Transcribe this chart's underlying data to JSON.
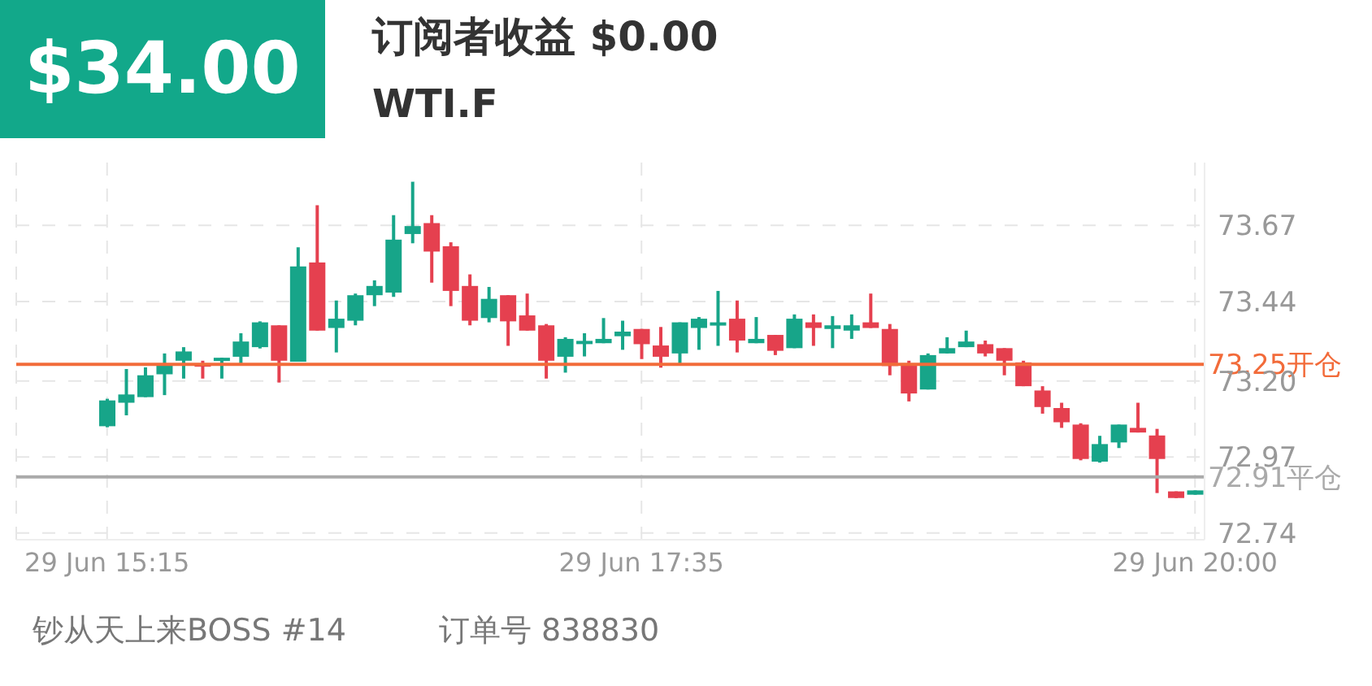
{
  "chart_data": {
    "type": "candlestick",
    "title": "WTI.F",
    "annotations": [
      "$34.00",
      "订阅者收益 $0.00",
      "钞从天上来BOSS #14",
      "订单号 838830"
    ],
    "categories": [
      "29 Jun 15:15",
      null,
      null,
      null,
      null,
      null,
      null,
      null,
      null,
      null,
      null,
      null,
      null,
      null,
      null,
      null,
      null,
      null,
      null,
      null,
      null,
      null,
      null,
      null,
      null,
      null,
      null,
      null,
      "29 Jun 17:35",
      null,
      null,
      null,
      null,
      null,
      null,
      null,
      null,
      null,
      null,
      null,
      null,
      null,
      null,
      null,
      null,
      null,
      null,
      null,
      null,
      null,
      null,
      null,
      null,
      null,
      null,
      null,
      null,
      "29 Jun 20:00"
    ],
    "ohlc": [
      [
        73.063,
        73.146,
        73.06,
        73.141
      ],
      [
        73.134,
        73.236,
        73.096,
        73.159
      ],
      [
        73.151,
        73.241,
        73.151,
        73.217
      ],
      [
        73.22,
        73.283,
        73.157,
        73.248
      ],
      [
        73.261,
        73.302,
        73.207,
        73.289
      ],
      [
        73.253,
        73.261,
        73.207,
        73.243
      ],
      [
        73.263,
        73.27,
        73.207,
        73.27
      ],
      [
        73.273,
        73.344,
        73.25,
        73.319
      ],
      [
        73.302,
        73.38,
        73.298,
        73.377
      ],
      [
        73.368,
        73.368,
        73.195,
        73.261
      ],
      [
        73.258,
        73.604,
        73.258,
        73.546
      ],
      [
        73.558,
        73.731,
        73.352,
        73.352
      ],
      [
        73.36,
        73.443,
        73.286,
        73.388
      ],
      [
        73.382,
        73.464,
        73.368,
        73.459
      ],
      [
        73.459,
        73.504,
        73.426,
        73.487
      ],
      [
        73.467,
        73.701,
        73.454,
        73.627
      ],
      [
        73.644,
        73.802,
        73.616,
        73.668
      ],
      [
        73.677,
        73.701,
        73.497,
        73.591
      ],
      [
        73.607,
        73.619,
        73.426,
        73.472
      ],
      [
        73.487,
        73.522,
        73.368,
        73.382
      ],
      [
        73.39,
        73.484,
        73.377,
        73.448
      ],
      [
        73.459,
        73.459,
        73.306,
        73.38
      ],
      [
        73.398,
        73.464,
        73.352,
        73.352
      ],
      [
        73.368,
        73.372,
        73.207,
        73.261
      ],
      [
        73.273,
        73.332,
        73.225,
        73.327
      ],
      [
        73.314,
        73.344,
        73.274,
        73.321
      ],
      [
        73.314,
        73.39,
        73.314,
        73.327
      ],
      [
        73.335,
        73.382,
        73.294,
        73.349
      ],
      [
        73.357,
        73.357,
        73.266,
        73.311
      ],
      [
        73.307,
        73.363,
        73.24,
        73.273
      ],
      [
        73.283,
        73.377,
        73.25,
        73.377
      ],
      [
        73.36,
        73.393,
        73.294,
        73.388
      ],
      [
        73.37,
        73.472,
        73.306,
        73.377
      ],
      [
        73.388,
        73.443,
        73.286,
        73.322
      ],
      [
        73.314,
        73.393,
        73.314,
        73.327
      ],
      [
        73.339,
        73.339,
        73.278,
        73.291
      ],
      [
        73.299,
        73.401,
        73.299,
        73.388
      ],
      [
        73.377,
        73.401,
        73.306,
        73.36
      ],
      [
        73.357,
        73.396,
        73.299,
        73.368
      ],
      [
        73.352,
        73.401,
        73.327,
        73.368
      ],
      [
        73.377,
        73.464,
        73.36,
        73.36
      ],
      [
        73.357,
        73.372,
        73.217,
        73.245
      ],
      [
        73.253,
        73.261,
        73.138,
        73.162
      ],
      [
        73.174,
        73.283,
        73.174,
        73.278
      ],
      [
        73.283,
        73.332,
        73.283,
        73.299
      ],
      [
        73.302,
        73.352,
        73.302,
        73.319
      ],
      [
        73.311,
        73.322,
        73.274,
        73.283
      ],
      [
        73.299,
        73.299,
        73.217,
        73.261
      ],
      [
        73.256,
        73.261,
        73.184,
        73.184
      ],
      [
        73.171,
        73.184,
        73.101,
        73.121
      ],
      [
        73.118,
        73.134,
        73.058,
        73.075
      ],
      [
        73.068,
        73.072,
        72.96,
        72.964
      ],
      [
        72.956,
        73.034,
        72.953,
        73.009
      ],
      [
        73.014,
        73.068,
        72.997,
        73.068
      ],
      [
        73.058,
        73.134,
        73.044,
        73.044
      ],
      [
        73.035,
        73.055,
        72.861,
        72.964
      ],
      [
        72.866,
        72.866,
        72.846,
        72.846
      ],
      [
        72.856,
        72.869,
        72.856,
        72.869
      ]
    ],
    "colors": [
      "#17a589",
      "#17a589",
      "#17a589",
      "#17a589",
      "#17a589",
      "#e5404f",
      "#17a589",
      "#17a589",
      "#17a589",
      "#e5404f",
      "#17a589",
      "#e5404f",
      "#17a589",
      "#17a589",
      "#17a589",
      "#17a589",
      "#17a589",
      "#e5404f",
      "#e5404f",
      "#e5404f",
      "#17a589",
      "#e5404f",
      "#e5404f",
      "#e5404f",
      "#17a589",
      "#17a589",
      "#17a589",
      "#17a589",
      "#e5404f",
      "#e5404f",
      "#17a589",
      "#17a589",
      "#17a589",
      "#e5404f",
      "#17a589",
      "#e5404f",
      "#17a589",
      "#e5404f",
      "#17a589",
      "#17a589",
      "#e5404f",
      "#e5404f",
      "#e5404f",
      "#17a589",
      "#17a589",
      "#17a589",
      "#e5404f",
      "#e5404f",
      "#e5404f",
      "#e5404f",
      "#e5404f",
      "#e5404f",
      "#17a589",
      "#17a589",
      "#e5404f",
      "#e5404f",
      "#e5404f",
      "#17a589"
    ],
    "ylim": [
      72.72,
      73.86
    ],
    "yticks": [
      {
        "value": 72.74,
        "label": "72.74"
      },
      {
        "value": 72.97,
        "label": "72.97"
      },
      {
        "value": 73.2,
        "label": "73.20"
      },
      {
        "value": 73.44,
        "label": "73.44"
      },
      {
        "value": 73.67,
        "label": "73.67"
      }
    ],
    "ref_lines": [
      {
        "axis": "y",
        "value": 73.25,
        "label": "73.25开仓",
        "color": "#f26b3a"
      },
      {
        "axis": "y",
        "value": 72.91,
        "label": "72.91平仓",
        "color": "#aaaaaa"
      }
    ],
    "grid": true
  }
}
